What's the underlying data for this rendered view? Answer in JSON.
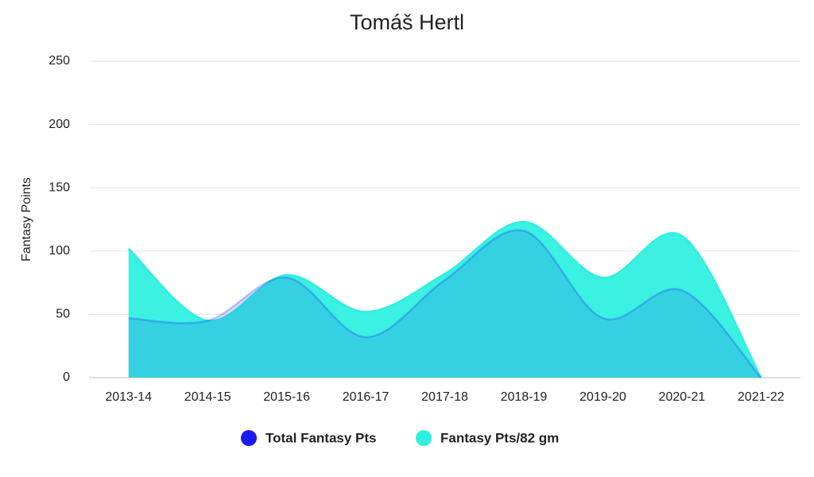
{
  "chart_data": {
    "type": "area",
    "title": "Tomáš Hertl",
    "y_label": "Fantasy Points",
    "categories": [
      "2013-14",
      "2014-15",
      "2015-16",
      "2016-17",
      "2017-18",
      "2018-19",
      "2019-20",
      "2020-21",
      "2021-22"
    ],
    "series": [
      {
        "name": "Total Fantasy Pts",
        "color": "#1a1aee",
        "values": [
          47,
          45,
          79,
          32,
          77,
          116,
          47,
          69,
          0
        ]
      },
      {
        "name": "Fantasy Pts/82 gm",
        "color": "#2ff0e0",
        "values": [
          102,
          45,
          81,
          52,
          82,
          123,
          79,
          112,
          0
        ]
      }
    ],
    "ylim": [
      0,
      250
    ],
    "yticks": [
      0,
      50,
      100,
      150,
      200,
      250
    ],
    "grid": true
  }
}
